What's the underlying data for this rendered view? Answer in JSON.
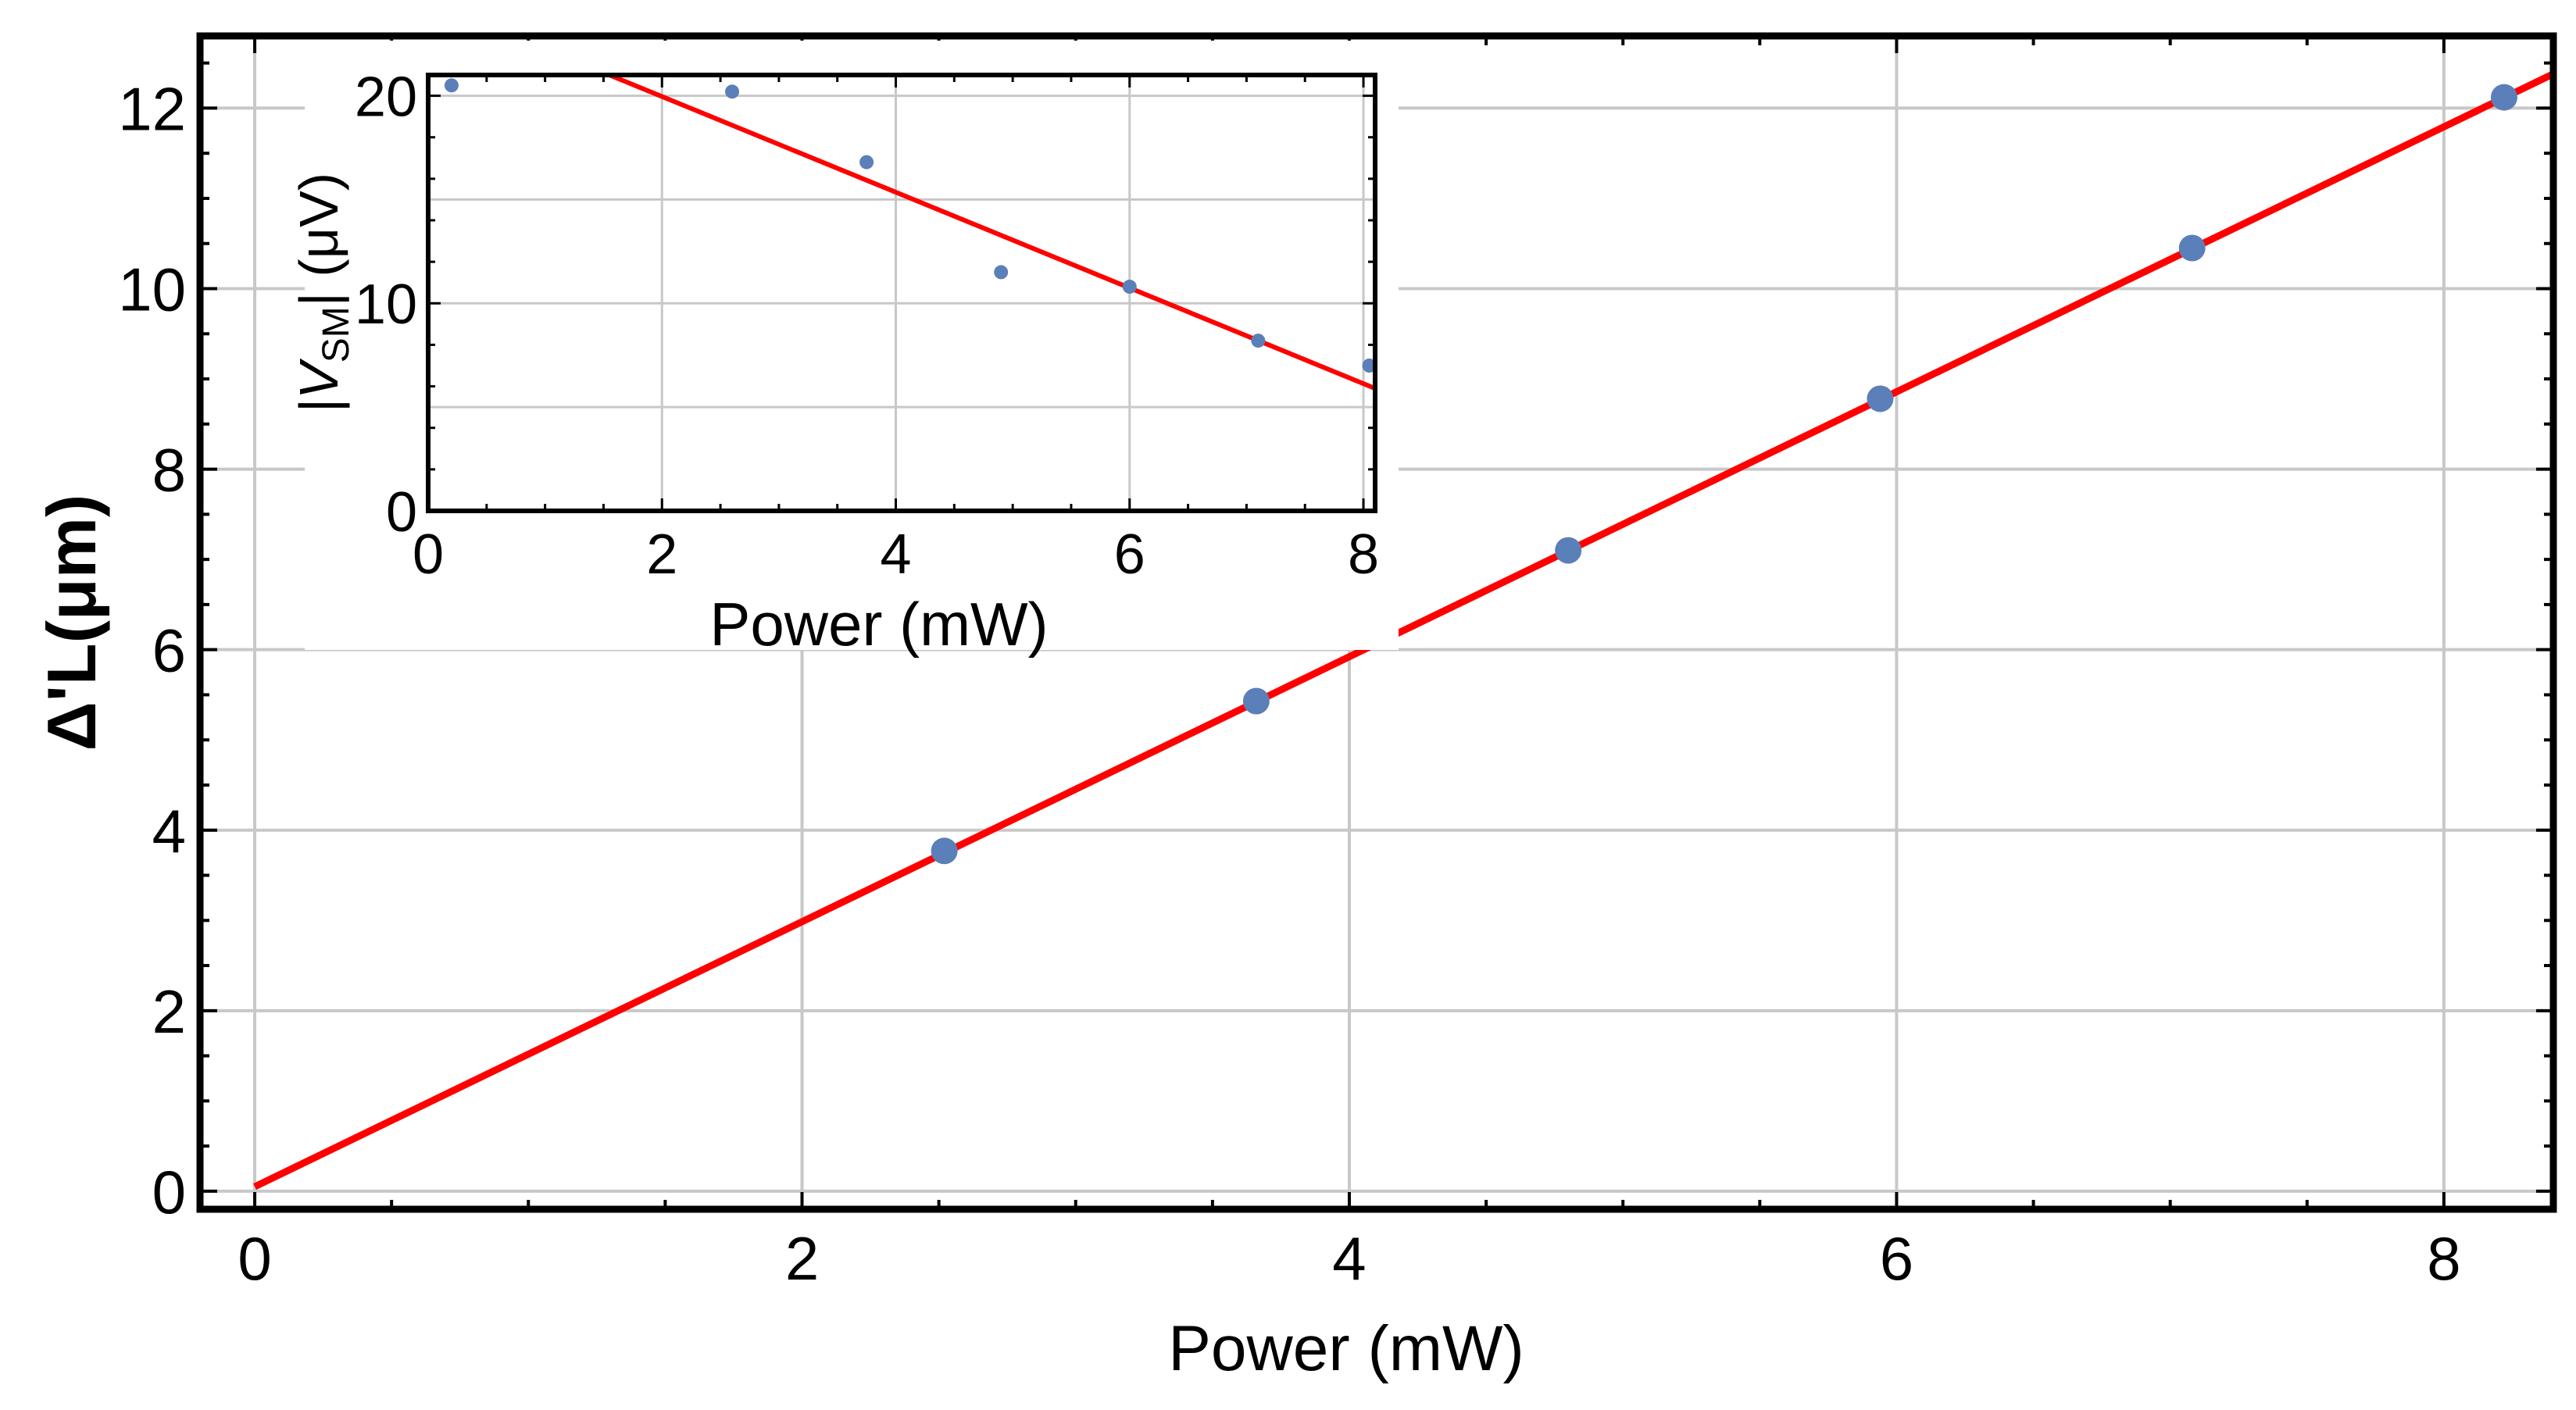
{
  "chart_data": [
    {
      "type": "scatter",
      "title": "",
      "xlabel": "Power (mW)",
      "ylabel": "Δ'L(μm)",
      "xlim": [
        -0.2,
        8.4
      ],
      "ylim": [
        -0.2,
        12.8
      ],
      "xticks": [
        0,
        2,
        4,
        6,
        8
      ],
      "yticks": [
        0,
        2,
        4,
        6,
        8,
        10,
        12
      ],
      "grid": true,
      "series": [
        {
          "kind": "points",
          "color": "#5b7fb8",
          "x": [
            2.52,
            3.66,
            4.8,
            5.94,
            7.08,
            8.22
          ],
          "y": [
            3.77,
            5.43,
            7.1,
            8.78,
            10.45,
            12.12
          ]
        },
        {
          "kind": "line",
          "color": "#ff0000",
          "x": [
            0,
            8.4
          ],
          "y": [
            0.05,
            12.38
          ]
        }
      ]
    },
    {
      "type": "scatter",
      "inset": true,
      "title": "",
      "xlabel": "Power (mW)",
      "ylabel_prefix": "|V",
      "ylabel_sub": "SM",
      "ylabel_suffix": "| (μV)",
      "xlim": [
        0,
        8.1
      ],
      "ylim": [
        0,
        21
      ],
      "xticks": [
        0,
        2,
        4,
        6,
        8
      ],
      "yticks": [
        0,
        10,
        20
      ],
      "grid": true,
      "series": [
        {
          "kind": "points",
          "color": "#5b7fb8",
          "x": [
            0.2,
            2.6,
            3.75,
            4.9,
            6.0,
            7.1,
            8.05
          ],
          "y": [
            20.5,
            20.2,
            16.8,
            11.5,
            10.8,
            8.2,
            7.0
          ]
        },
        {
          "kind": "line",
          "color": "#ff0000",
          "x": [
            1.55,
            8.1
          ],
          "y": [
            21.0,
            5.9
          ]
        }
      ]
    }
  ]
}
